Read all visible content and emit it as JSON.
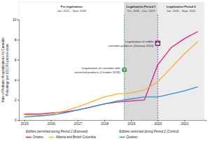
{
  "chart_data": {
    "type": "line",
    "y_label": [
      "Rate of Pediatric Hospitalizations for Cannabis",
      "Poisonings per 100,000 person-years"
    ],
    "x": [
      2015,
      2015.5,
      2016,
      2016.5,
      2017,
      2017.5,
      2018,
      2018.5,
      2019,
      2019.5,
      2020,
      2020.5,
      2021,
      2021.5
    ],
    "xlim": [
      2014.8,
      2021.8
    ],
    "xticks": [
      2015,
      2016,
      2017,
      2018,
      2019,
      2020,
      2021
    ],
    "ylim": [
      0,
      10
    ],
    "yticks": [
      0,
      2,
      4,
      6,
      8,
      10
    ],
    "series": [
      {
        "name": "Ontario",
        "color": "#e6197e",
        "group": "Edibles permitted during Period 2 (Exposed)",
        "values": [
          0.6,
          0.6,
          0.7,
          0.8,
          1.0,
          1.3,
          1.6,
          1.8,
          1.9,
          2.0,
          5.5,
          7.2,
          8.1,
          8.8
        ]
      },
      {
        "name": "Alberta and British Columbia",
        "color": "#f5b323",
        "group": "Edibles permitted during Period 2 (Exposed)",
        "values": [
          0.5,
          0.5,
          0.6,
          0.9,
          1.3,
          1.8,
          2.3,
          2.6,
          2.7,
          3.0,
          3.8,
          5.2,
          6.6,
          7.8
        ]
      },
      {
        "name": "Quebec",
        "color": "#2e8fde",
        "group": "Edibles restricted during Period 2 (Control)",
        "values": [
          0.3,
          0.4,
          0.5,
          0.7,
          1.0,
          1.3,
          1.6,
          1.9,
          2.1,
          2.3,
          2.3,
          2.6,
          2.9,
          3.3
        ]
      }
    ],
    "periods": [
      {
        "title": "Pre-legalization",
        "dates": "Jan. 2015 – Sept. 2018",
        "start": 2014.8,
        "end": 2018.75
      },
      {
        "title": "Legalization Period 1",
        "dates": "Oct. 2018 – Dec. 2019",
        "start": 2018.75,
        "end": 2020
      },
      {
        "title": "Legalization Period 2",
        "dates": "Jan. 2020 – Sept. 2021",
        "start": 2020,
        "end": 2021.75
      }
    ],
    "annotations": [
      {
        "text": [
          "Legalization of cannabis with",
          "restricted products (October 2018)"
        ],
        "x": 2018.75,
        "color": "#3a9a3f"
      },
      {
        "text": [
          "Legalization of edible",
          "cannabis products (January 2020)"
        ],
        "x": 2020,
        "color": "#7d2b8b"
      }
    ],
    "legend": "bottom"
  }
}
